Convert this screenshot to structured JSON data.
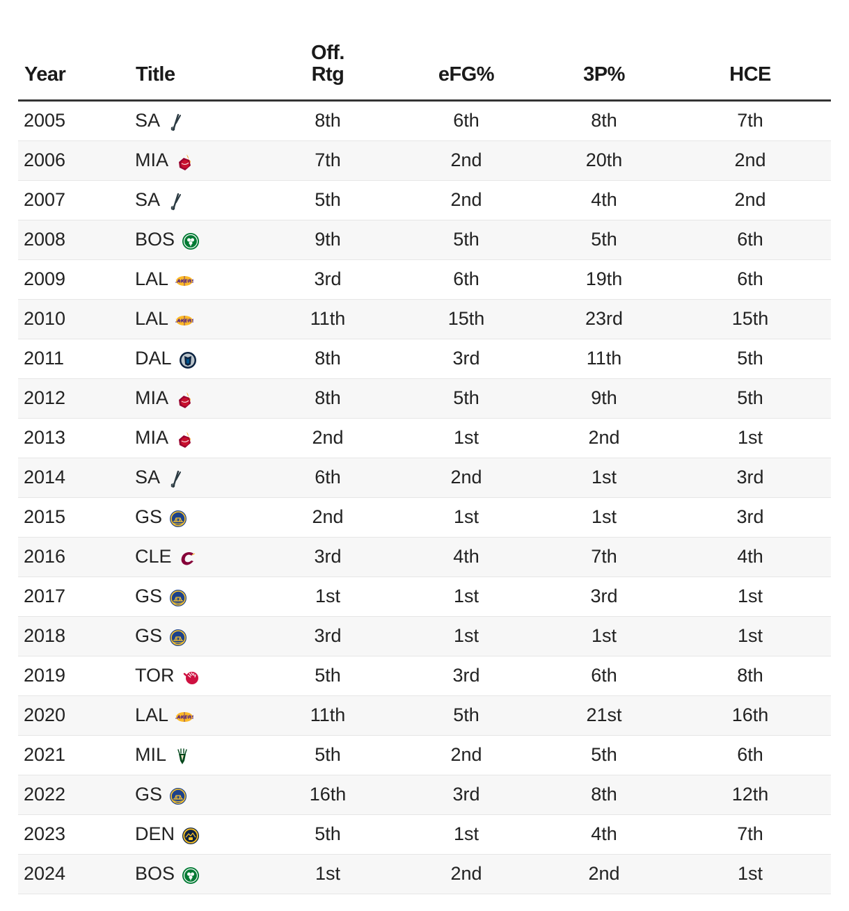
{
  "columns": {
    "year": "Year",
    "title": "Title",
    "off_rtg_line1": "Off.",
    "off_rtg_line2": "Rtg",
    "efg": "eFG%",
    "three_p": "3P%",
    "hce": "HCE"
  },
  "teams": {
    "SA": {
      "icon": "spurs-logo-icon"
    },
    "MIA": {
      "icon": "heat-logo-icon"
    },
    "BOS": {
      "icon": "celtics-logo-icon"
    },
    "LAL": {
      "icon": "lakers-logo-icon"
    },
    "DAL": {
      "icon": "mavericks-logo-icon"
    },
    "GS": {
      "icon": "warriors-logo-icon"
    },
    "CLE": {
      "icon": "cavaliers-logo-icon"
    },
    "TOR": {
      "icon": "raptors-logo-icon"
    },
    "MIL": {
      "icon": "bucks-logo-icon"
    },
    "DEN": {
      "icon": "nuggets-logo-icon"
    }
  },
  "rows": [
    {
      "year": "2005",
      "team": "SA",
      "off_rtg": "8th",
      "efg": "6th",
      "three_p": "8th",
      "hce": "7th"
    },
    {
      "year": "2006",
      "team": "MIA",
      "off_rtg": "7th",
      "efg": "2nd",
      "three_p": "20th",
      "hce": "2nd"
    },
    {
      "year": "2007",
      "team": "SA",
      "off_rtg": "5th",
      "efg": "2nd",
      "three_p": "4th",
      "hce": "2nd"
    },
    {
      "year": "2008",
      "team": "BOS",
      "off_rtg": "9th",
      "efg": "5th",
      "three_p": "5th",
      "hce": "6th"
    },
    {
      "year": "2009",
      "team": "LAL",
      "off_rtg": "3rd",
      "efg": "6th",
      "three_p": "19th",
      "hce": "6th"
    },
    {
      "year": "2010",
      "team": "LAL",
      "off_rtg": "11th",
      "efg": "15th",
      "three_p": "23rd",
      "hce": "15th"
    },
    {
      "year": "2011",
      "team": "DAL",
      "off_rtg": "8th",
      "efg": "3rd",
      "three_p": "11th",
      "hce": "5th"
    },
    {
      "year": "2012",
      "team": "MIA",
      "off_rtg": "8th",
      "efg": "5th",
      "three_p": "9th",
      "hce": "5th"
    },
    {
      "year": "2013",
      "team": "MIA",
      "off_rtg": "2nd",
      "efg": "1st",
      "three_p": "2nd",
      "hce": "1st"
    },
    {
      "year": "2014",
      "team": "SA",
      "off_rtg": "6th",
      "efg": "2nd",
      "three_p": "1st",
      "hce": "3rd"
    },
    {
      "year": "2015",
      "team": "GS",
      "off_rtg": "2nd",
      "efg": "1st",
      "three_p": "1st",
      "hce": "3rd"
    },
    {
      "year": "2016",
      "team": "CLE",
      "off_rtg": "3rd",
      "efg": "4th",
      "three_p": "7th",
      "hce": "4th"
    },
    {
      "year": "2017",
      "team": "GS",
      "off_rtg": "1st",
      "efg": "1st",
      "three_p": "3rd",
      "hce": "1st"
    },
    {
      "year": "2018",
      "team": "GS",
      "off_rtg": "3rd",
      "efg": "1st",
      "three_p": "1st",
      "hce": "1st"
    },
    {
      "year": "2019",
      "team": "TOR",
      "off_rtg": "5th",
      "efg": "3rd",
      "three_p": "6th",
      "hce": "8th"
    },
    {
      "year": "2020",
      "team": "LAL",
      "off_rtg": "11th",
      "efg": "5th",
      "three_p": "21st",
      "hce": "16th"
    },
    {
      "year": "2021",
      "team": "MIL",
      "off_rtg": "5th",
      "efg": "2nd",
      "three_p": "5th",
      "hce": "6th"
    },
    {
      "year": "2022",
      "team": "GS",
      "off_rtg": "16th",
      "efg": "3rd",
      "three_p": "8th",
      "hce": "12th"
    },
    {
      "year": "2023",
      "team": "DEN",
      "off_rtg": "5th",
      "efg": "1st",
      "three_p": "4th",
      "hce": "7th"
    },
    {
      "year": "2024",
      "team": "BOS",
      "off_rtg": "1st",
      "efg": "2nd",
      "three_p": "2nd",
      "hce": "1st"
    }
  ]
}
